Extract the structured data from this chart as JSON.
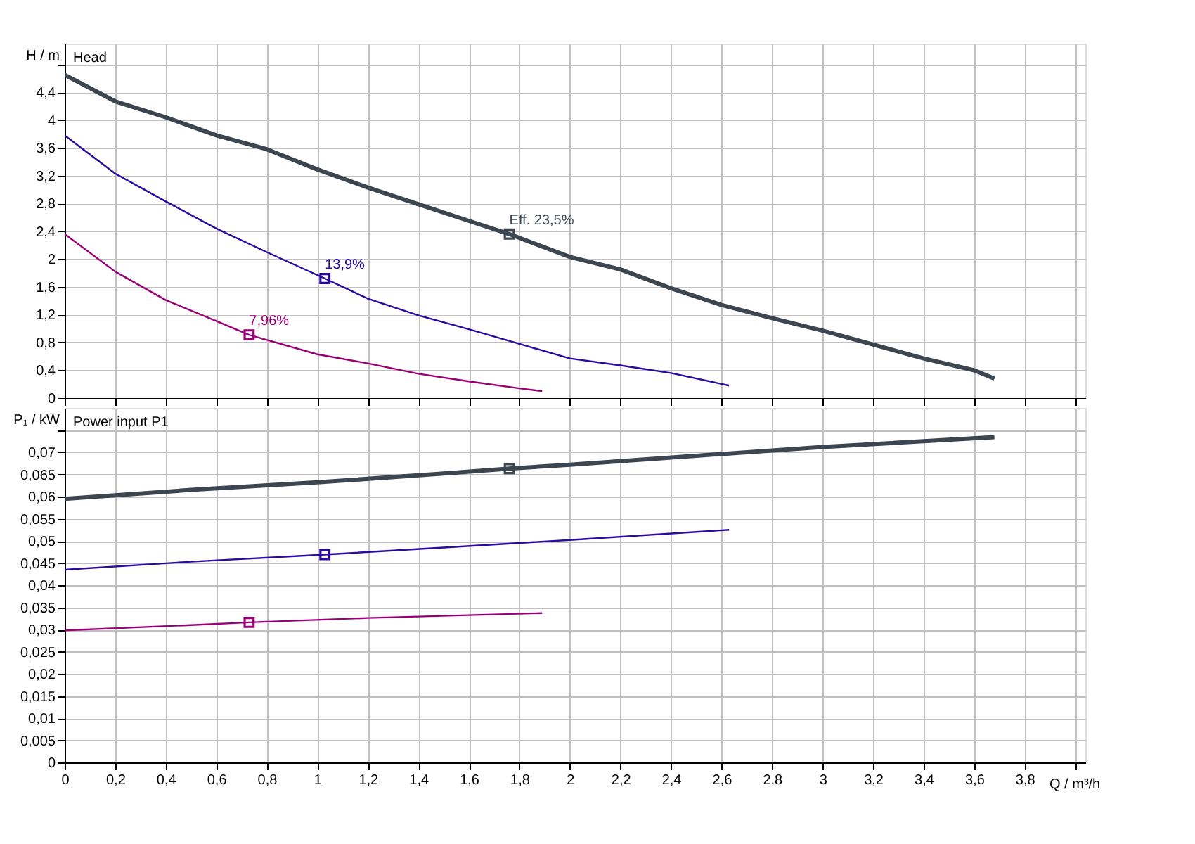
{
  "chart_data": [
    {
      "type": "line",
      "ylabel": "H / m",
      "annotations": [
        "Head",
        {
          "text": "Eff.  23,5%",
          "x": 1.76,
          "y": 2.36
        },
        {
          "text": "13,9%",
          "x": 1.03,
          "y": 1.72
        },
        {
          "text": "7,96%",
          "x": 0.73,
          "y": 0.91
        }
      ],
      "xlim": [
        0,
        4.04
      ],
      "xticks": [
        0,
        0.2,
        0.4,
        0.6,
        0.8,
        1,
        1.2,
        1.4,
        1.6,
        1.8,
        2,
        2.2,
        2.4,
        2.6,
        2.8,
        3,
        3.2,
        3.4,
        3.6,
        3.8,
        4
      ],
      "ylim": [
        0,
        5.1
      ],
      "yticks": [
        0,
        {
          "value": 0.4,
          "label": "0,4"
        },
        {
          "value": 0.8,
          "label": "0,8"
        },
        {
          "value": 1.2,
          "label": "1,2"
        },
        {
          "value": 1.6,
          "label": "1,6"
        },
        2,
        {
          "value": 2.4,
          "label": "2,4"
        },
        {
          "value": 2.8,
          "label": "2,8"
        },
        {
          "value": 3.2,
          "label": "3,2"
        },
        {
          "value": 3.6,
          "label": "3,6"
        },
        4,
        {
          "value": 4.4,
          "label": "4,4"
        },
        {
          "value": 4.8,
          "label": null
        }
      ],
      "grid": true,
      "tick_labels": "y",
      "series": [
        {
          "color": "#3c4650",
          "x": [
            0,
            0.2,
            0.4,
            0.6,
            0.8,
            1.0,
            1.2,
            1.4,
            1.6,
            1.76,
            2.0,
            2.2,
            2.4,
            2.6,
            2.8,
            3.0,
            3.2,
            3.4,
            3.6,
            3.68
          ],
          "values": [
            4.65,
            4.27,
            4.04,
            3.78,
            3.58,
            3.29,
            3.03,
            2.79,
            2.55,
            2.36,
            2.03,
            1.85,
            1.58,
            1.34,
            1.15,
            0.97,
            0.77,
            0.57,
            0.4,
            0.28
          ]
        },
        {
          "color": "#2a0aa0",
          "x": [
            0,
            0.2,
            0.4,
            0.6,
            0.8,
            1.03,
            1.2,
            1.4,
            1.6,
            1.8,
            2.0,
            2.2,
            2.4,
            2.63
          ],
          "values": [
            3.78,
            3.23,
            2.83,
            2.44,
            2.1,
            1.72,
            1.43,
            1.19,
            0.99,
            0.78,
            0.57,
            0.47,
            0.36,
            0.18
          ]
        },
        {
          "color": "#990077",
          "x": [
            0,
            0.2,
            0.4,
            0.6,
            0.73,
            1.0,
            1.2,
            1.4,
            1.6,
            1.8,
            1.89
          ],
          "values": [
            2.36,
            1.82,
            1.41,
            1.11,
            0.91,
            0.63,
            0.5,
            0.35,
            0.24,
            0.14,
            0.1
          ]
        },
        {
          "type": "scatter",
          "marker": "square",
          "color": "#3c4650",
          "x": [
            1.76
          ],
          "values": [
            2.36
          ]
        },
        {
          "type": "scatter",
          "marker": "square",
          "color": "#2a0aa0",
          "x": [
            1.03
          ],
          "values": [
            1.72
          ]
        },
        {
          "type": "scatter",
          "marker": "square",
          "color": "#990077",
          "x": [
            0.73
          ],
          "values": [
            0.91
          ]
        }
      ]
    },
    {
      "type": "line",
      "ylabel": "P₁ / kW",
      "xlabel": "Q / m³/h",
      "annotations": [
        "Power input P1"
      ],
      "xlim": [
        0,
        4.04
      ],
      "xticks": [
        0,
        {
          "value": 0.2,
          "label": "0,2"
        },
        {
          "value": 0.4,
          "label": "0,4"
        },
        {
          "value": 0.6,
          "label": "0,6"
        },
        {
          "value": 0.8,
          "label": "0,8"
        },
        1,
        {
          "value": 1.2,
          "label": "1,2"
        },
        {
          "value": 1.4,
          "label": "1,4"
        },
        {
          "value": 1.6,
          "label": "1,6"
        },
        {
          "value": 1.8,
          "label": "1,8"
        },
        2,
        {
          "value": 2.2,
          "label": "2,2"
        },
        {
          "value": 2.4,
          "label": "2,4"
        },
        {
          "value": 2.6,
          "label": "2,6"
        },
        {
          "value": 2.8,
          "label": "2,8"
        },
        3,
        {
          "value": 3.2,
          "label": "3,2"
        },
        {
          "value": 3.4,
          "label": "3,4"
        },
        {
          "value": 3.6,
          "label": "3,6"
        },
        {
          "value": 3.8,
          "label": "3,8"
        },
        {
          "value": 4,
          "label": null
        }
      ],
      "ylim": [
        0,
        0.08
      ],
      "yticks": [
        0,
        {
          "value": 0.005,
          "label": "0,005"
        },
        {
          "value": 0.01,
          "label": "0,01"
        },
        {
          "value": 0.015,
          "label": "0,015"
        },
        {
          "value": 0.02,
          "label": "0,02"
        },
        {
          "value": 0.025,
          "label": "0,025"
        },
        {
          "value": 0.03,
          "label": "0,03"
        },
        {
          "value": 0.035,
          "label": "0,035"
        },
        {
          "value": 0.04,
          "label": "0,04"
        },
        {
          "value": 0.045,
          "label": "0,045"
        },
        {
          "value": 0.05,
          "label": "0,05"
        },
        {
          "value": 0.055,
          "label": "0,055"
        },
        {
          "value": 0.06,
          "label": "0,06"
        },
        {
          "value": 0.065,
          "label": "0,065"
        },
        {
          "value": 0.07,
          "label": "0,07"
        },
        {
          "value": 0.075,
          "label": null
        }
      ],
      "grid": true,
      "series": [
        {
          "color": "#3c4650",
          "x": [
            0,
            0.5,
            1.0,
            1.5,
            1.76,
            2.0,
            2.5,
            3.0,
            3.68
          ],
          "values": [
            0.0595,
            0.0615,
            0.0632,
            0.0652,
            0.0663,
            0.0672,
            0.0692,
            0.0712,
            0.0734
          ]
        },
        {
          "color": "#2a0aa0",
          "x": [
            0,
            0.5,
            1.03,
            1.5,
            2.0,
            2.63
          ],
          "values": [
            0.0435,
            0.0453,
            0.0469,
            0.0485,
            0.0502,
            0.0525
          ]
        },
        {
          "color": "#990077",
          "x": [
            0,
            0.5,
            0.73,
            1.2,
            1.89
          ],
          "values": [
            0.0298,
            0.031,
            0.0316,
            0.0326,
            0.0337
          ]
        },
        {
          "type": "scatter",
          "marker": "square",
          "color": "#3c4650",
          "x": [
            1.76
          ],
          "values": [
            0.0663
          ]
        },
        {
          "type": "scatter",
          "marker": "square",
          "color": "#2a0aa0",
          "x": [
            1.03
          ],
          "values": [
            0.0469
          ]
        },
        {
          "type": "scatter",
          "marker": "square",
          "color": "#990077",
          "x": [
            0.73
          ],
          "values": [
            0.0316
          ]
        }
      ]
    }
  ]
}
